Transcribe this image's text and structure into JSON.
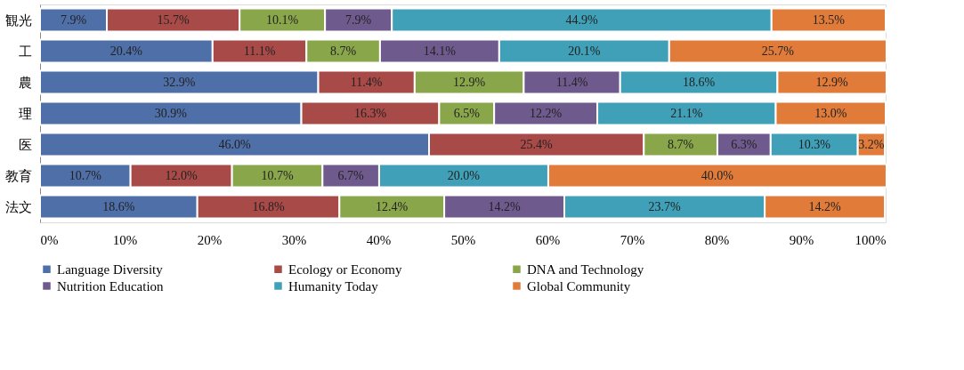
{
  "chart_data": {
    "type": "bar",
    "orientation": "horizontal",
    "stacked": true,
    "categories": [
      "観光",
      "工",
      "農",
      "理",
      "医",
      "教育",
      "法文"
    ],
    "series": [
      {
        "name": "Language Diversity",
        "color": "#4f6fa8",
        "values": [
          7.9,
          20.4,
          32.9,
          30.9,
          46.0,
          10.7,
          18.6
        ],
        "value_labels": [
          "7.9%",
          "20.4%",
          "32.9%",
          "30.9%",
          "46.0%",
          "10.7%",
          "18.6%"
        ]
      },
      {
        "name": "Ecology or Economy",
        "color": "#a84a48",
        "values": [
          15.7,
          11.1,
          11.4,
          16.3,
          25.4,
          12.0,
          16.8
        ],
        "value_labels": [
          "15.7%",
          "11.1%",
          "11.4%",
          "16.3%",
          "25.4%",
          "12.0%",
          "16.8%"
        ]
      },
      {
        "name": "DNA and Technology",
        "color": "#8aa64a",
        "values": [
          10.1,
          8.7,
          12.9,
          6.5,
          8.7,
          10.7,
          12.4
        ],
        "value_labels": [
          "10.1%",
          "8.7%",
          "12.9%",
          "6.5%",
          "8.7%",
          "10.7%",
          "12.4%"
        ]
      },
      {
        "name": "Nutrition Education",
        "color": "#6f5a8e",
        "values": [
          7.9,
          14.1,
          11.4,
          12.2,
          6.3,
          6.7,
          14.2
        ],
        "value_labels": [
          "7.9%",
          "14.1%",
          "11.4%",
          "12.2%",
          "6.3%",
          "6.7%",
          "14.2%"
        ]
      },
      {
        "name": "Humanity Today",
        "color": "#3fa0b8",
        "values": [
          44.9,
          20.1,
          18.6,
          21.1,
          10.3,
          20.0,
          23.7
        ],
        "value_labels": [
          "44.9%",
          "20.1%",
          "18.6%",
          "21.1%",
          "10.3%",
          "20.0%",
          "23.7%"
        ]
      },
      {
        "name": "Global Community",
        "color": "#e07b3a",
        "values": [
          13.5,
          25.7,
          12.9,
          13.0,
          3.2,
          40.0,
          14.2
        ],
        "value_labels": [
          "13.5%",
          "25.7%",
          "12.9%",
          "13.0%",
          "3.2%",
          "40.0%",
          "14.2%"
        ]
      }
    ],
    "xlim": [
      0,
      100
    ],
    "xticks": [
      {
        "value": 0,
        "label": "0%"
      },
      {
        "value": 10,
        "label": "10%"
      },
      {
        "value": 20,
        "label": "20%"
      },
      {
        "value": 30,
        "label": "30%"
      },
      {
        "value": 40,
        "label": "40%"
      },
      {
        "value": 50,
        "label": "50%"
      },
      {
        "value": 60,
        "label": "60%"
      },
      {
        "value": 70,
        "label": "70%"
      },
      {
        "value": 80,
        "label": "80%"
      },
      {
        "value": 90,
        "label": "90%"
      },
      {
        "value": 100,
        "label": "100%"
      }
    ],
    "grid": false,
    "legend": "bottom"
  }
}
